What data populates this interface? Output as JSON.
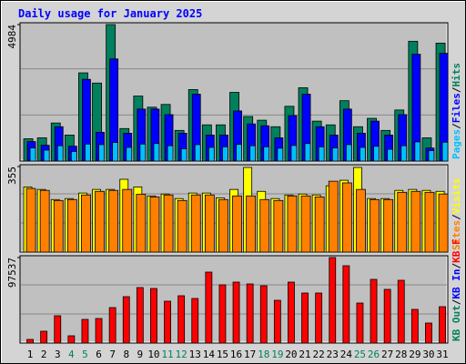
{
  "chart_data": [
    {
      "type": "bar",
      "title": "Daily usage for January 2025",
      "ylim": [
        0,
        4984
      ],
      "yticks": [
        4984
      ],
      "legend_separator": "/",
      "series": [
        {
          "name": "Hits",
          "color": "#00805c",
          "values": [
            814,
            848,
            1390,
            949,
            3221,
            2848,
            4984,
            1187,
            2373,
            1966,
            2068,
            1119,
            2611,
            1322,
            1322,
            2509,
            1627,
            1492,
            1254,
            2000,
            2678,
            1458,
            1322,
            2204,
            1254,
            1560,
            1119,
            1865,
            4374,
            848,
            4306
          ]
        },
        {
          "name": "Files",
          "color": "#0000ff",
          "values": [
            712,
            576,
            1254,
            542,
            2984,
            1051,
            3729,
            1017,
            1898,
            1898,
            1695,
            1017,
            2441,
            949,
            949,
            1831,
            1356,
            1288,
            848,
            1661,
            2441,
            1254,
            949,
            1898,
            1017,
            1458,
            949,
            1695,
            3899,
            475,
            3933
          ]
        },
        {
          "name": "Pages",
          "color": "#00c0ff",
          "values": [
            480,
            400,
            560,
            350,
            620,
            600,
            680,
            500,
            620,
            640,
            560,
            450,
            600,
            500,
            520,
            610,
            560,
            520,
            470,
            570,
            640,
            520,
            480,
            600,
            500,
            540,
            430,
            560,
            700,
            380,
            690
          ]
        }
      ]
    },
    {
      "type": "bar",
      "ylim": [
        0,
        355
      ],
      "yticks": [
        355
      ],
      "legend_separator": "/",
      "series": [
        {
          "name": "Visits",
          "color": "#ffff00",
          "values": [
            270,
            260,
            218,
            222,
            245,
            260,
            260,
            302,
            270,
            233,
            241,
            222,
            245,
            245,
            225,
            260,
            351,
            252,
            222,
            237,
            241,
            237,
            275,
            298,
            351,
            222,
            222,
            256,
            260,
            256,
            252
          ]
        },
        {
          "name": "Sites",
          "color": "#ff8000",
          "values": [
            264,
            256,
            214,
            218,
            237,
            252,
            256,
            260,
            240,
            229,
            237,
            214,
            237,
            237,
            218,
            233,
            233,
            218,
            214,
            233,
            233,
            229,
            294,
            287,
            260,
            218,
            218,
            248,
            252,
            248,
            241
          ]
        }
      ]
    },
    {
      "type": "bar",
      "ylim": [
        0,
        97537
      ],
      "yticks": [
        97537
      ],
      "legend_separator": "/",
      "categories": [
        "1",
        "2",
        "3",
        "4",
        "5",
        "6",
        "7",
        "8",
        "9",
        "10",
        "11",
        "12",
        "13",
        "14",
        "15",
        "16",
        "17",
        "18",
        "19",
        "20",
        "21",
        "22",
        "23",
        "24",
        "25",
        "26",
        "27",
        "28",
        "29",
        "30",
        "31"
      ],
      "category_colors": [
        "#000000",
        "#000000",
        "#000000",
        "#00805c",
        "#00805c",
        "#000000",
        "#000000",
        "#000000",
        "#000000",
        "#000000",
        "#00805c",
        "#00805c",
        "#000000",
        "#000000",
        "#000000",
        "#000000",
        "#000000",
        "#00805c",
        "#00805c",
        "#000000",
        "#000000",
        "#000000",
        "#000000",
        "#000000",
        "#00805c",
        "#00805c",
        "#000000",
        "#000000",
        "#000000",
        "#000000",
        "#000000"
      ],
      "series": [
        {
          "name": "KB F",
          "color": "#ff0000",
          "values": [
            4150,
            13489,
            31128,
            8301,
            26978,
            28015,
            40466,
            52918,
            63294,
            62256,
            47730,
            53955,
            50843,
            80933,
            66407,
            69520,
            67444,
            65369,
            48768,
            69520,
            57068,
            57068,
            97537,
            88196,
            45654,
            72632,
            61219,
            71595,
            38391,
            22827,
            41503
          ]
        },
        {
          "name": "KB In",
          "color": "#0000ff"
        },
        {
          "name": "KB Out",
          "color": "#00805c"
        }
      ]
    }
  ]
}
